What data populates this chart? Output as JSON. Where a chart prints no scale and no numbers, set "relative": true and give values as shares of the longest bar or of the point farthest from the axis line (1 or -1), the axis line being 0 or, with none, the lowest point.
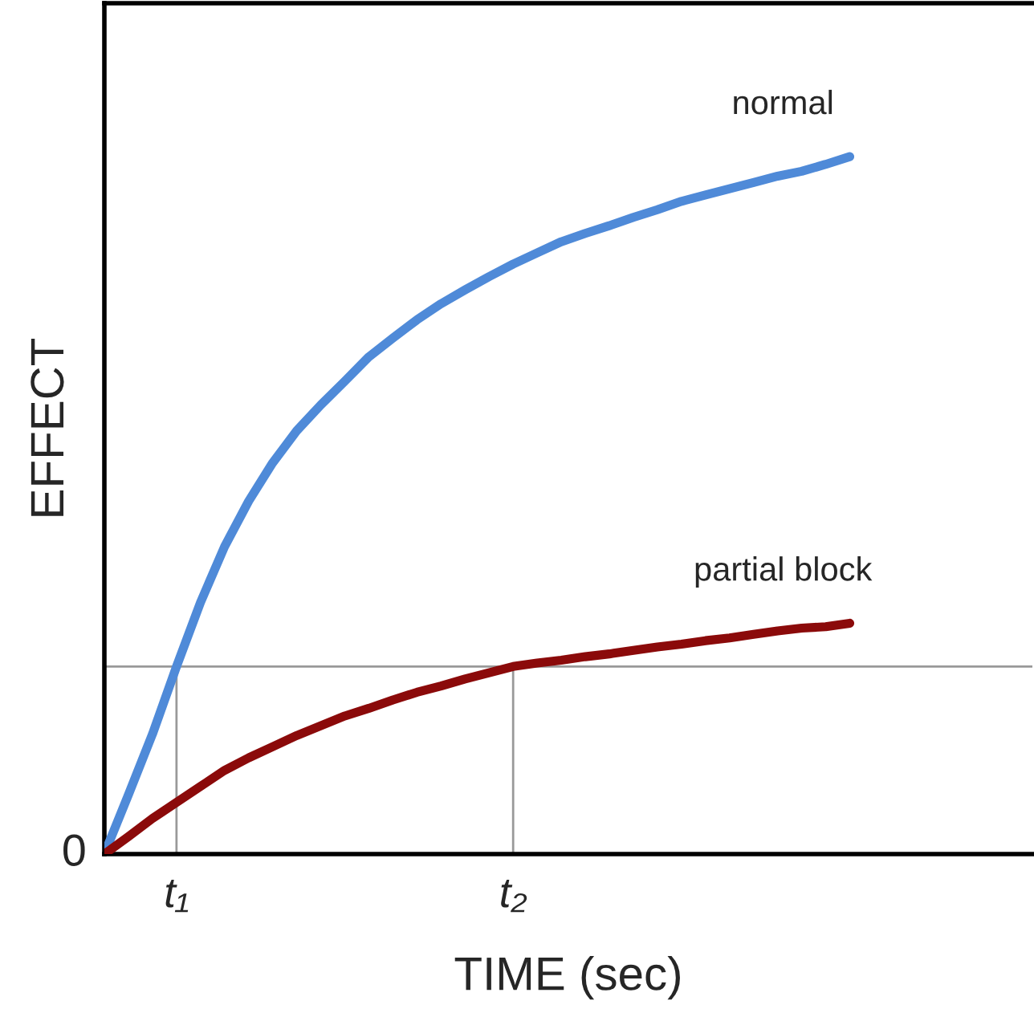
{
  "chart_data": {
    "type": "line",
    "relative": true,
    "xlabel": "TIME (sec)",
    "ylabel": "EFFECT",
    "categories": [
      null,
      null,
      null,
      "t₁",
      null,
      null,
      null,
      null,
      null,
      null,
      null,
      null,
      null,
      null,
      null,
      null,
      null,
      "t₂",
      null,
      null,
      null,
      null,
      null,
      null,
      null,
      null,
      null,
      null,
      null,
      null,
      null,
      null
    ],
    "series": [
      {
        "name": "normal",
        "color": "#4f8ad8",
        "values": [
          0,
          0.085,
          0.172,
          0.269,
          0.361,
          0.441,
          0.506,
          0.561,
          0.607,
          0.644,
          0.678,
          0.713,
          0.74,
          0.766,
          0.789,
          0.809,
          0.828,
          0.846,
          0.862,
          0.878,
          0.89,
          0.901,
          0.913,
          0.924,
          0.936,
          0.945,
          0.954,
          0.963,
          0.972,
          0.979,
          0.989,
          1.0
        ]
      },
      {
        "name": "partial block",
        "color": "#8b0a0a",
        "values": [
          0,
          0.025,
          0.051,
          0.074,
          0.097,
          0.12,
          0.138,
          0.154,
          0.17,
          0.184,
          0.198,
          0.209,
          0.221,
          0.232,
          0.241,
          0.251,
          0.26,
          0.269,
          0.274,
          0.278,
          0.283,
          0.287,
          0.292,
          0.297,
          0.301,
          0.306,
          0.31,
          0.315,
          0.32,
          0.324,
          0.326,
          0.331
        ]
      }
    ],
    "ref_lines": [
      {
        "axis": "y",
        "value": 0.269,
        "color": "#999999"
      },
      {
        "axis": "x",
        "value": "t₁",
        "color": "#999999"
      },
      {
        "axis": "x",
        "value": "t₂",
        "color": "#999999"
      }
    ],
    "annotations": [
      "0"
    ],
    "legend": false,
    "marker": "none",
    "line_style": "solid"
  }
}
